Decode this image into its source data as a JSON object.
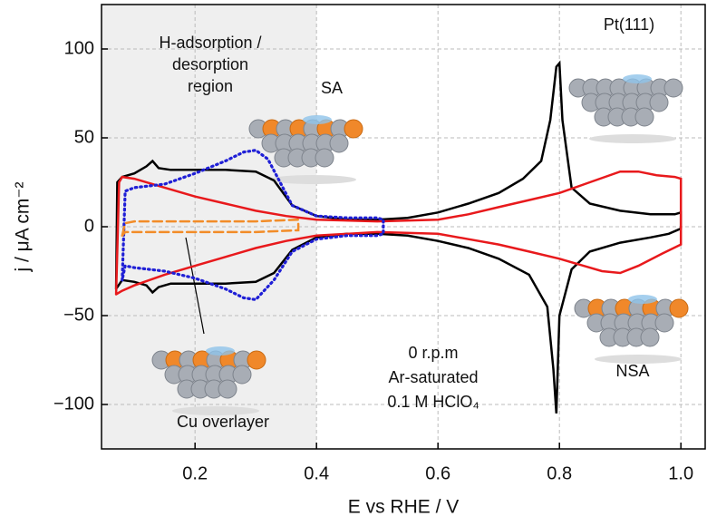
{
  "chart_data": {
    "type": "line",
    "xlabel": "E vs RHE / V",
    "ylabel": "j / μA cm⁻²",
    "xlim": [
      0.046,
      1.04
    ],
    "ylim": [
      -125,
      125
    ],
    "xticks": [
      0.2,
      0.4,
      0.6,
      0.8,
      {
        "value": 1,
        "label": "1.0"
      }
    ],
    "yticks": [
      100,
      50,
      0,
      {
        "value": -50,
        "label": "−50"
      },
      {
        "value": -100,
        "label": "−100"
      }
    ],
    "grid": true,
    "shaded_region": {
      "x": [
        0.046,
        0.4
      ],
      "label": [
        "H-adsorption /",
        "desorption",
        "region"
      ]
    },
    "conditions": [
      "0 r.p.m",
      "Ar-saturated",
      "0.1 M HClO₄"
    ],
    "series": [
      {
        "name": "Pt(111)",
        "color": "#000000",
        "style": "solid",
        "x": [
          0.07,
          0.072,
          0.08,
          0.1,
          0.12,
          0.13,
          0.14,
          0.16,
          0.2,
          0.25,
          0.3,
          0.33,
          0.36,
          0.4,
          0.45,
          0.5,
          0.55,
          0.6,
          0.65,
          0.7,
          0.74,
          0.77,
          0.785,
          0.795,
          0.8,
          0.805,
          0.82,
          0.85,
          0.9,
          0.95,
          0.99,
          1.0,
          1.0,
          0.98,
          0.95,
          0.9,
          0.85,
          0.82,
          0.8,
          0.795,
          0.79,
          0.78,
          0.75,
          0.7,
          0.65,
          0.6,
          0.55,
          0.5,
          0.45,
          0.4,
          0.36,
          0.33,
          0.3,
          0.25,
          0.2,
          0.16,
          0.14,
          0.13,
          0.12,
          0.1,
          0.08,
          0.07
        ],
        "values": [
          -35,
          25,
          28,
          30,
          34,
          37,
          33,
          32,
          32,
          32,
          31,
          26,
          12,
          6,
          4,
          4,
          5,
          8,
          13,
          19,
          27,
          37,
          60,
          90,
          92,
          60,
          22,
          13,
          9,
          7,
          7,
          8,
          -1,
          -4,
          -6,
          -9,
          -14,
          -24,
          -50,
          -105,
          -80,
          -45,
          -27,
          -18,
          -12,
          -8,
          -5,
          -4,
          -4,
          -6,
          -13,
          -26,
          -31,
          -32,
          -32,
          -32,
          -34,
          -37,
          -33,
          -31,
          -30,
          -35
        ]
      },
      {
        "name": "NSA",
        "color": "#e8191c",
        "style": "solid",
        "x": [
          0.07,
          0.075,
          0.08,
          0.1,
          0.15,
          0.2,
          0.25,
          0.3,
          0.35,
          0.4,
          0.5,
          0.6,
          0.65,
          0.7,
          0.75,
          0.8,
          0.85,
          0.9,
          0.93,
          0.96,
          0.99,
          1.0,
          1.0,
          0.97,
          0.93,
          0.9,
          0.87,
          0.8,
          0.75,
          0.7,
          0.65,
          0.6,
          0.5,
          0.4,
          0.35,
          0.3,
          0.25,
          0.2,
          0.15,
          0.1,
          0.08,
          0.07
        ],
        "values": [
          -38,
          25,
          28,
          27,
          22,
          17,
          13,
          9,
          6,
          4,
          3,
          4,
          7,
          11,
          15,
          19,
          25,
          31,
          31,
          29,
          28,
          27,
          -10,
          -15,
          -22,
          -26,
          -25,
          -18,
          -14,
          -10,
          -7,
          -4,
          -3,
          -5,
          -8,
          -12,
          -17,
          -22,
          -27,
          -33,
          -36,
          -38
        ]
      },
      {
        "name": "SA",
        "color": "#1f1fd6",
        "style": "dotted",
        "x": [
          0.08,
          0.085,
          0.1,
          0.15,
          0.2,
          0.25,
          0.28,
          0.3,
          0.32,
          0.34,
          0.36,
          0.4,
          0.45,
          0.5,
          0.51,
          0.51,
          0.5,
          0.45,
          0.4,
          0.36,
          0.33,
          0.3,
          0.28,
          0.25,
          0.2,
          0.15,
          0.1,
          0.085,
          0.08
        ],
        "values": [
          -30,
          20,
          22,
          24,
          30,
          37,
          42,
          43,
          38,
          25,
          12,
          6,
          5,
          5,
          4,
          -4,
          -5,
          -5,
          -7,
          -14,
          -30,
          -41,
          -40,
          -35,
          -29,
          -25,
          -23,
          -22,
          -30
        ]
      },
      {
        "name": "Cu overlayer",
        "color": "#f28c28",
        "style": "dashed",
        "x": [
          0.08,
          0.085,
          0.1,
          0.2,
          0.3,
          0.37,
          0.37,
          0.3,
          0.2,
          0.1,
          0.085,
          0.08
        ],
        "values": [
          -5,
          2,
          3,
          3,
          3,
          4,
          -2,
          -3,
          -3,
          -3,
          -3,
          -5
        ]
      }
    ]
  }
}
